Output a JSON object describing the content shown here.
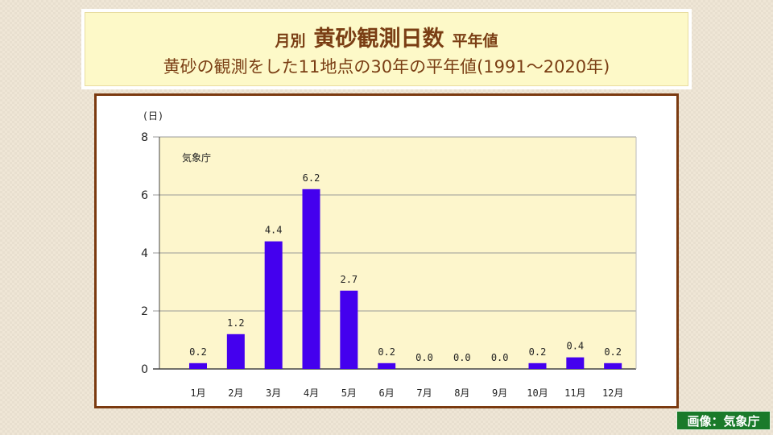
{
  "title": {
    "prefix": "月別",
    "main": "黄砂観測日数",
    "suffix": "平年値",
    "subtitle": "黄砂の観測をした11地点の30年の平年値(1991〜2020年)"
  },
  "credit": "画像：気象庁",
  "chart_data": {
    "type": "bar",
    "categories": [
      "1月",
      "2月",
      "3月",
      "4月",
      "5月",
      "6月",
      "7月",
      "8月",
      "9月",
      "10月",
      "11月",
      "12月"
    ],
    "values": [
      0.2,
      1.2,
      4.4,
      6.2,
      2.7,
      0.2,
      0.0,
      0.0,
      0.0,
      0.2,
      0.4,
      0.2
    ],
    "value_labels": [
      "0.2",
      "1.2",
      "4.4",
      "6.2",
      "2.7",
      "0.2",
      "0.0",
      "0.0",
      "0.0",
      "0.2",
      "0.4",
      "0.2"
    ],
    "ylabel": "(日)",
    "yticks": [
      0,
      2,
      4,
      6,
      8
    ],
    "ylim": [
      0,
      8
    ],
    "source_note": "気象庁",
    "grid": true,
    "colors": {
      "bar": "#4400ee",
      "plot_bg": "#fdf6cc",
      "grid": "#999999"
    }
  }
}
